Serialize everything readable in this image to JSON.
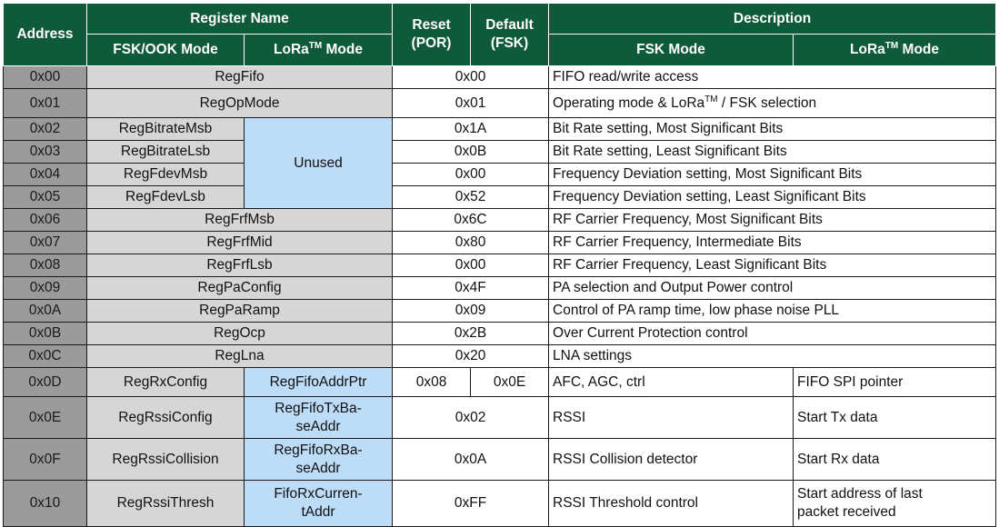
{
  "header": {
    "address": "Address",
    "register_name": "Register Name",
    "fsk_ook_mode": "FSK/OOK Mode",
    "lora_mode_prefix": "LoRa",
    "lora_mode_sup": "TM",
    "lora_mode_suffix": " Mode",
    "reset_line1": "Reset",
    "reset_line2": "(POR)",
    "default_line1": "Default",
    "default_line2": "(FSK)",
    "description": "Description",
    "fsk_mode": "FSK Mode"
  },
  "rows": [
    {
      "address": "0x00",
      "name": "RegFifo",
      "value": "0x00",
      "desc": "FIFO read/write access"
    },
    {
      "address": "0x01",
      "name": "RegOpMode",
      "value": "0x01",
      "desc_prefix": "Operating mode & LoRa",
      "desc_sup": "TM",
      "desc_suffix": " / FSK selection"
    },
    {
      "address": "0x02",
      "name": "RegBitrateMsb",
      "value": "0x1A",
      "desc": "Bit Rate setting, Most Significant Bits"
    },
    {
      "address": "0x03",
      "name": "RegBitrateLsb",
      "value": "0x0B",
      "desc": "Bit Rate setting, Least Significant Bits"
    },
    {
      "address": "0x04",
      "name": "RegFdevMsb",
      "value": "0x00",
      "desc": "Frequency Deviation setting, Most Significant Bits"
    },
    {
      "address": "0x05",
      "name": "RegFdevLsb",
      "value": "0x52",
      "desc": "Frequency Deviation setting, Least Significant Bits"
    },
    {
      "address": "0x06",
      "name": "RegFrfMsb",
      "value": "0x6C",
      "desc": "RF Carrier Frequency, Most Significant Bits"
    },
    {
      "address": "0x07",
      "name": "RegFrfMid",
      "value": "0x80",
      "desc": "RF Carrier Frequency, Intermediate Bits"
    },
    {
      "address": "0x08",
      "name": "RegFrfLsb",
      "value": "0x00",
      "desc": "RF Carrier Frequency, Least Significant Bits"
    },
    {
      "address": "0x09",
      "name": "RegPaConfig",
      "value": "0x4F",
      "desc": "PA selection and Output Power control"
    },
    {
      "address": "0x0A",
      "name": "RegPaRamp",
      "value": "0x09",
      "desc": "Control of PA ramp time, low phase noise PLL"
    },
    {
      "address": "0x0B",
      "name": "RegOcp",
      "value": "0x2B",
      "desc": "Over Current Protection control"
    },
    {
      "address": "0x0C",
      "name": "RegLna",
      "value": "0x20",
      "desc": "LNA settings"
    },
    {
      "address": "0x0D",
      "name": "RegRxConfig",
      "lora_name": "RegFifoAddrPtr",
      "reset": "0x08",
      "default": "0x0E",
      "desc": "AFC, AGC, ctrl",
      "lora_desc": "FIFO SPI pointer"
    },
    {
      "address": "0x0E",
      "name": "RegRssiConfig",
      "lora_name_1": "RegFifoTxBa-",
      "lora_name_2": "seAddr",
      "value": "0x02",
      "desc": "RSSI",
      "lora_desc": "Start Tx data"
    },
    {
      "address": "0x0F",
      "name": "RegRssiCollision",
      "lora_name_1": "RegFifoRxBa-",
      "lora_name_2": "seAddr",
      "value": "0x0A",
      "desc": "RSSI Collision detector",
      "lora_desc": "Start Rx data"
    },
    {
      "address": "0x10",
      "name": "RegRssiThresh",
      "lora_name_1": "FifoRxCurren-",
      "lora_name_2": "tAddr",
      "value": "0xFF",
      "desc": "RSSI Threshold control",
      "lora_desc_1": "Start address of last",
      "lora_desc_2": "packet received"
    }
  ],
  "unused_label": "Unused",
  "colors": {
    "header_bg": "#0f5a3a",
    "address_bg": "#9a9a9a",
    "name_bg": "#d6d6d6",
    "lora_bg": "#bddcf7"
  }
}
